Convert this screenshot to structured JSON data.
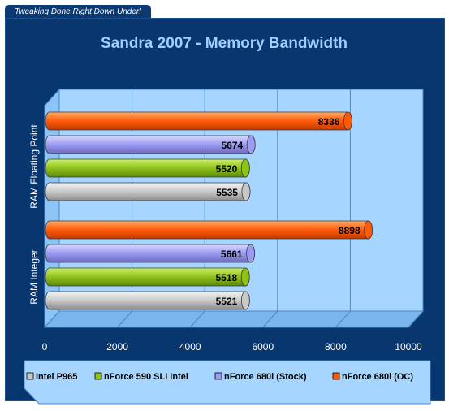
{
  "brand": {
    "tagline": "Tweaking Done Right Down Under!"
  },
  "chart_data": {
    "type": "bar",
    "orientation": "horizontal",
    "title": "Sandra 2007 - Memory Bandwidth",
    "xlabel": "",
    "ylabel": "",
    "xlim": [
      0,
      10000
    ],
    "x_ticks": [
      "0",
      "2000",
      "4000",
      "6000",
      "8000",
      "10000"
    ],
    "grid": true,
    "legend_position": "bottom",
    "categories": [
      "RAM Floating Point",
      "RAM Integer"
    ],
    "series": [
      {
        "name": "Intel P965",
        "color": "#c8c8c8",
        "values": [
          5535,
          5521
        ]
      },
      {
        "name": "nForce 590 SLI Intel",
        "color": "#8ec21a",
        "values": [
          5520,
          5518
        ]
      },
      {
        "name": "nForce 680i (Stock)",
        "color": "#9b9bf2",
        "values": [
          5674,
          5661
        ]
      },
      {
        "name": "nForce 680i (OC)",
        "color": "#ff5a0a",
        "values": [
          8336,
          8898
        ]
      }
    ]
  }
}
